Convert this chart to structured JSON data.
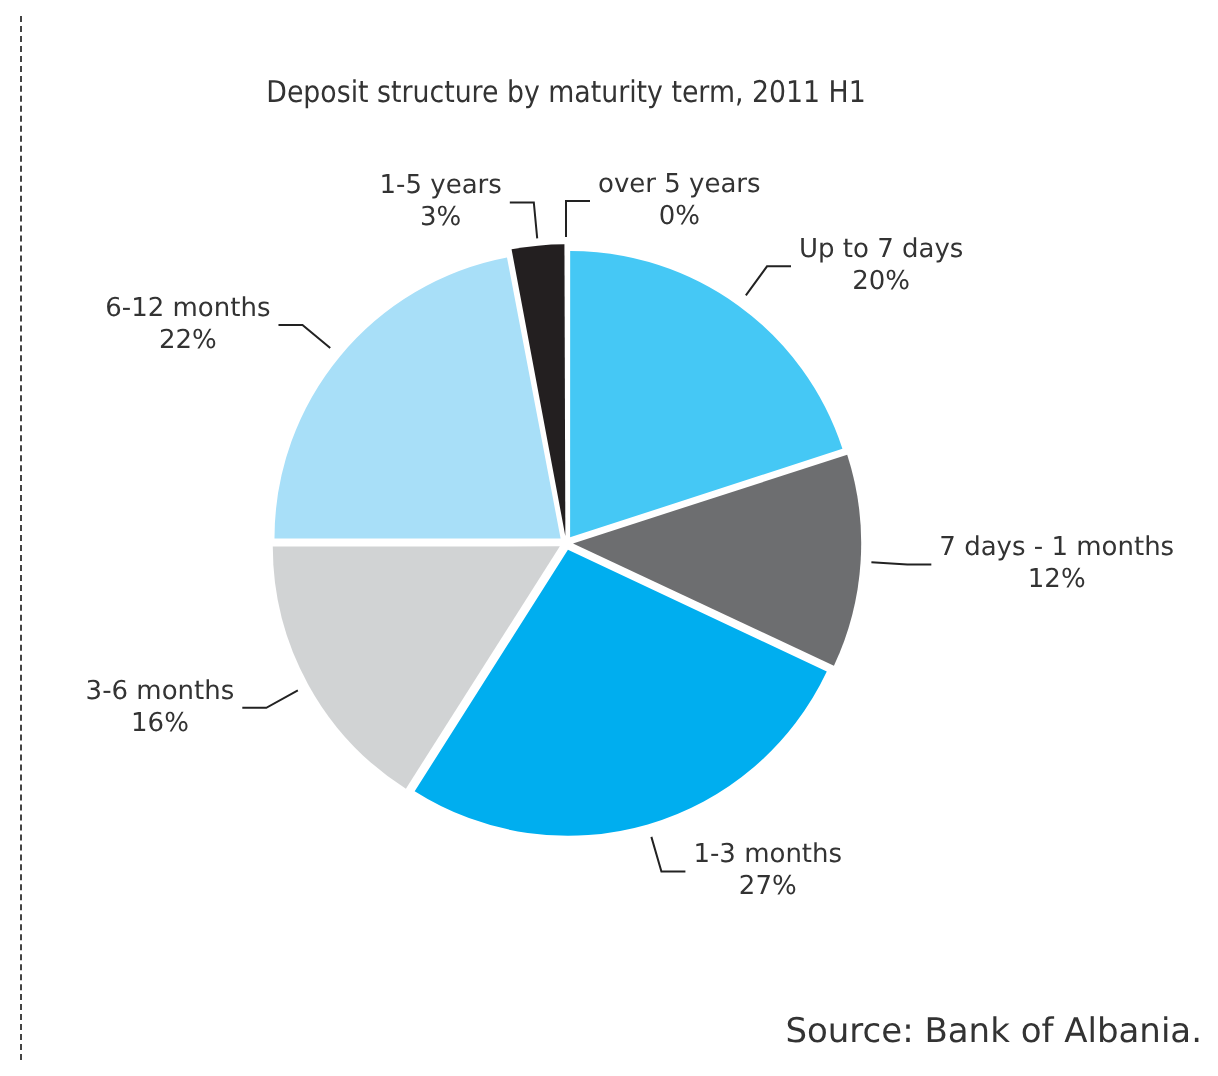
{
  "chart_data": {
    "type": "pie",
    "title": "Deposit structure by maturity term, 2011 H1",
    "categories": [
      "Up to 7 days",
      "7 days - 1 months",
      "1-3 months",
      "3-6 months",
      "6-12 months",
      "1-5 years",
      "over 5 years"
    ],
    "values": [
      20,
      12,
      27,
      16,
      22,
      3,
      0
    ],
    "value_labels": [
      "20%",
      "12%",
      "27%",
      "16%",
      "22%",
      "3%",
      "0%"
    ],
    "colors": [
      "#45c8f5",
      "#6d6e70",
      "#00aeef",
      "#d1d3d4",
      "#a8dff8",
      "#231f20",
      "#8fa0c0"
    ],
    "legend": false,
    "annotations": [
      "Source: Bank of Albania."
    ]
  }
}
